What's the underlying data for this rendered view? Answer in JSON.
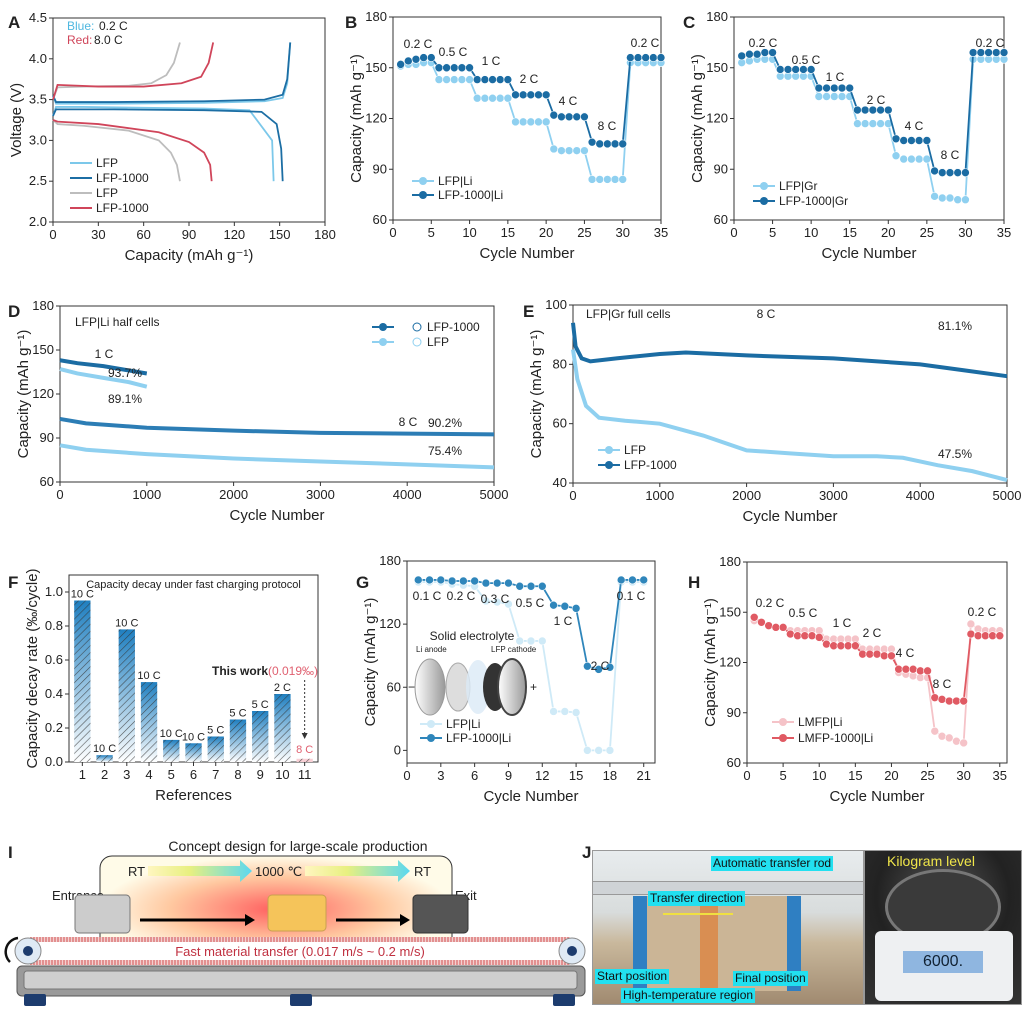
{
  "panels": {
    "A": "A",
    "B": "B",
    "C": "C",
    "D": "D",
    "E": "E",
    "F": "F",
    "G": "G",
    "H": "H",
    "I": "I",
    "J": "J"
  },
  "chart_data": [
    {
      "id": "A",
      "type": "line",
      "xlabel": "Capacity (mAh g⁻¹)",
      "ylabel": "Voltage (V)",
      "xlim": [
        0,
        180
      ],
      "ylim": [
        2.0,
        4.5
      ],
      "xticks": [
        0,
        30,
        60,
        90,
        120,
        150,
        180
      ],
      "yticks": [
        2.0,
        2.5,
        3.0,
        3.5,
        4.0,
        4.5
      ],
      "annotations": [
        {
          "text": "Blue:",
          "color": "#4fb8e0"
        },
        {
          "text": "0.2 C"
        },
        {
          "text": "Red:",
          "color": "#d0455a"
        },
        {
          "text": "8.0 C"
        }
      ],
      "series": [
        {
          "name": "LFP",
          "color": "#7cc8ea",
          "x": [
            0,
            2,
            20,
            60,
            100,
            130,
            145,
            146
          ],
          "y": [
            3.3,
            3.41,
            3.41,
            3.4,
            3.39,
            3.37,
            3.0,
            2.5
          ],
          "x2": [
            0,
            2,
            40,
            100,
            140,
            152,
            155,
            157
          ],
          "y2": [
            3.55,
            3.45,
            3.45,
            3.46,
            3.48,
            3.52,
            3.7,
            4.2
          ]
        },
        {
          "name": "LFP-1000",
          "color": "#1c6ea4",
          "x": [
            0,
            2,
            40,
            100,
            138,
            148,
            151,
            152
          ],
          "y": [
            3.3,
            3.38,
            3.38,
            3.37,
            3.35,
            3.2,
            2.9,
            2.5
          ],
          "x2": [
            0,
            2,
            40,
            100,
            140,
            152,
            155,
            157
          ],
          "y2": [
            3.55,
            3.47,
            3.47,
            3.48,
            3.5,
            3.56,
            3.75,
            4.2
          ]
        },
        {
          "name": "LFP",
          "color": "#bdbdbd",
          "x": [
            0,
            3,
            20,
            50,
            70,
            78,
            82,
            84
          ],
          "y": [
            3.25,
            3.2,
            3.18,
            3.12,
            3.0,
            2.85,
            2.7,
            2.5
          ],
          "x2": [
            0,
            3,
            20,
            50,
            65,
            75,
            80,
            84
          ],
          "y2": [
            3.5,
            3.65,
            3.66,
            3.67,
            3.7,
            3.8,
            3.95,
            4.2
          ]
        },
        {
          "name": "LFP-1000",
          "color": "#d0455a",
          "x": [
            0,
            3,
            30,
            70,
            90,
            100,
            104,
            105
          ],
          "y": [
            3.25,
            3.23,
            3.2,
            3.1,
            2.98,
            2.85,
            2.7,
            2.5
          ],
          "x2": [
            0,
            3,
            30,
            60,
            85,
            98,
            103,
            106
          ],
          "y2": [
            3.5,
            3.68,
            3.66,
            3.66,
            3.7,
            3.78,
            3.95,
            4.2
          ]
        }
      ]
    },
    {
      "id": "B",
      "type": "line",
      "xlabel": "Cycle Number",
      "ylabel": "Capacity (mAh g⁻¹)",
      "xlim": [
        0,
        35
      ],
      "ylim": [
        60,
        180
      ],
      "xticks": [
        0,
        5,
        10,
        15,
        20,
        25,
        30,
        35
      ],
      "yticks": [
        60,
        90,
        120,
        150,
        180
      ],
      "annotations": [
        {
          "text": "0.2 C"
        },
        {
          "text": "0.5 C"
        },
        {
          "text": "1 C"
        },
        {
          "text": "2 C"
        },
        {
          "text": "4 C"
        },
        {
          "text": "8 C"
        },
        {
          "text": "0.2 C"
        }
      ],
      "series": [
        {
          "name": "LFP|Li",
          "color": "#8fd0f0",
          "y": [
            151,
            152,
            152,
            153,
            153,
            143,
            143,
            143,
            143,
            143,
            132,
            132,
            132,
            132,
            132,
            118,
            118,
            118,
            118,
            118,
            102,
            101,
            101,
            101,
            101,
            84,
            84,
            84,
            84,
            84,
            153,
            153,
            153,
            153,
            153
          ]
        },
        {
          "name": "LFP-1000|Li",
          "color": "#1b6ca3",
          "y": [
            152,
            154,
            155,
            156,
            156,
            150,
            150,
            150,
            150,
            150,
            143,
            143,
            143,
            143,
            143,
            134,
            134,
            134,
            134,
            134,
            122,
            121,
            121,
            121,
            121,
            106,
            105,
            105,
            105,
            105,
            156,
            156,
            156,
            156,
            156
          ]
        }
      ]
    },
    {
      "id": "C",
      "type": "line",
      "xlabel": "Cycle Number",
      "ylabel": "Capacity (mAh g⁻¹)",
      "xlim": [
        0,
        35
      ],
      "ylim": [
        60,
        180
      ],
      "xticks": [
        0,
        5,
        10,
        15,
        20,
        25,
        30,
        35
      ],
      "yticks": [
        60,
        90,
        120,
        150,
        180
      ],
      "annotations": [
        {
          "text": "0.2 C"
        },
        {
          "text": "0.5 C"
        },
        {
          "text": "1 C"
        },
        {
          "text": "2 C"
        },
        {
          "text": "4 C"
        },
        {
          "text": "8 C"
        },
        {
          "text": "0.2 C"
        }
      ],
      "series": [
        {
          "name": "LFP|Gr",
          "color": "#8fd0f0",
          "y": [
            153,
            154,
            155,
            155,
            155,
            145,
            145,
            145,
            145,
            145,
            133,
            133,
            133,
            133,
            133,
            117,
            117,
            117,
            117,
            117,
            98,
            96,
            96,
            96,
            96,
            74,
            73,
            73,
            72,
            72,
            155,
            155,
            155,
            155,
            155
          ]
        },
        {
          "name": "LFP-1000|Gr",
          "color": "#1b6ca3",
          "y": [
            157,
            158,
            158,
            159,
            159,
            149,
            149,
            149,
            149,
            149,
            138,
            138,
            138,
            138,
            138,
            125,
            125,
            125,
            125,
            125,
            108,
            107,
            107,
            107,
            107,
            89,
            88,
            88,
            88,
            88,
            159,
            159,
            159,
            159,
            159
          ]
        }
      ]
    },
    {
      "id": "D",
      "type": "line",
      "xlabel": "Cycle Number",
      "ylabel": "Capacity (mAh g⁻¹)",
      "xlim": [
        0,
        5000
      ],
      "ylim": [
        60,
        180
      ],
      "xticks": [
        0,
        1000,
        2000,
        3000,
        4000,
        5000
      ],
      "yticks": [
        60,
        90,
        120,
        150,
        180
      ],
      "annotations": [
        {
          "text": "LFP|Li half cells"
        },
        {
          "text": "1 C"
        },
        {
          "text": "93.7%"
        },
        {
          "text": "89.1%"
        },
        {
          "text": "8 C"
        },
        {
          "text": "90.2%"
        },
        {
          "text": "75.4%"
        }
      ],
      "series": [
        {
          "name": "LFP-1000",
          "color": "#1b6ca3",
          "x": [
            0,
            200,
            500,
            800,
            1000
          ],
          "y": [
            143,
            141,
            139,
            136,
            134
          ]
        },
        {
          "name": "LFP",
          "color": "#8fd0f0",
          "x": [
            0,
            200,
            500,
            800,
            1000
          ],
          "y": [
            137,
            134,
            131,
            128,
            125
          ]
        },
        {
          "name": "LFP-1000",
          "color": "#2c7db5",
          "x": [
            0,
            300,
            1000,
            2000,
            3000,
            4000,
            5000
          ],
          "y": [
            103,
            100,
            97,
            95,
            93.5,
            93,
            92.5
          ]
        },
        {
          "name": "LFP",
          "color": "#8fd0f0",
          "x": [
            0,
            300,
            1000,
            2000,
            3000,
            4000,
            5000
          ],
          "y": [
            85,
            82,
            79,
            76,
            74,
            72,
            70
          ]
        }
      ]
    },
    {
      "id": "E",
      "type": "line",
      "xlabel": "Cycle Number",
      "ylabel": "Capacity (mAh g⁻¹)",
      "xlim": [
        0,
        5000
      ],
      "ylim": [
        40,
        100
      ],
      "xticks": [
        0,
        1000,
        2000,
        3000,
        4000,
        5000
      ],
      "yticks": [
        40,
        60,
        80,
        100
      ],
      "annotations": [
        {
          "text": "LFP|Gr full cells"
        },
        {
          "text": "8 C"
        },
        {
          "text": "81.1%"
        },
        {
          "text": "47.5%"
        }
      ],
      "series": [
        {
          "name": "LFP",
          "color": "#8fd0f0",
          "x": [
            0,
            50,
            150,
            300,
            600,
            1000,
            1500,
            2000,
            2500,
            3000,
            3500,
            3800,
            4200,
            4600,
            5000
          ],
          "y": [
            85,
            75,
            66,
            62,
            61,
            60,
            56,
            51,
            50,
            49,
            49,
            48.5,
            46,
            44,
            41
          ]
        },
        {
          "name": "LFP-1000",
          "color": "#1b6ca3",
          "x": [
            0,
            30,
            100,
            200,
            500,
            1000,
            1300,
            2000,
            3000,
            4000,
            4500,
            5000
          ],
          "y": [
            94,
            86,
            82,
            81,
            82,
            83.5,
            84,
            83,
            82,
            80,
            78,
            76
          ]
        }
      ]
    },
    {
      "id": "F",
      "type": "bar",
      "title": "Capacity decay under fast charging protocol",
      "xlabel": "References",
      "ylabel": "Capacity decay rate (‰/cycle)",
      "ylim": [
        0,
        1.1
      ],
      "categories": [
        "1",
        "2",
        "3",
        "4",
        "5",
        "6",
        "7",
        "8",
        "9",
        "10",
        "11"
      ],
      "yticks": [
        0.0,
        0.2,
        0.4,
        0.6,
        0.8,
        1.0
      ],
      "values": [
        0.95,
        0.04,
        0.78,
        0.47,
        0.13,
        0.11,
        0.15,
        0.25,
        0.3,
        0.4,
        0.019
      ],
      "bar_labels": [
        "10 C",
        "10 C",
        "10 C",
        "10 C",
        "10 C",
        "10 C",
        "5 C",
        "5 C",
        "5 C",
        "2 C",
        "8 C"
      ],
      "annotations": [
        {
          "text": "This work"
        },
        {
          "text": "(0.019‰)",
          "color": "#e06070"
        }
      ]
    },
    {
      "id": "G",
      "type": "line",
      "xlabel": "Cycle Number",
      "ylabel": "Capacity (mAh g⁻¹)",
      "xlim": [
        0,
        22
      ],
      "ylim": [
        -12,
        180
      ],
      "xticks": [
        0,
        3,
        6,
        9,
        12,
        15,
        18,
        21
      ],
      "yticks": [
        0,
        60,
        120,
        180
      ],
      "annotations": [
        {
          "text": "0.1 C"
        },
        {
          "text": "0.2 C"
        },
        {
          "text": "0.3 C"
        },
        {
          "text": "0.5 C"
        },
        {
          "text": "1 C"
        },
        {
          "text": "2 C"
        },
        {
          "text": "0.1 C"
        }
      ],
      "inset": {
        "title": "Solid electrolyte",
        "anode": "Li anode",
        "cathode": "LFP cathode",
        "minus": "−",
        "plus": "+"
      },
      "series": [
        {
          "name": "LFP|Li",
          "color": "#cfeaf7",
          "y": [
            160,
            160,
            160,
            158,
            157,
            156,
            142,
            141,
            139,
            104,
            104,
            104,
            37,
            37,
            36,
            0,
            0,
            0,
            160,
            160,
            160
          ]
        },
        {
          "name": "LFP-1000|Li",
          "color": "#2f86bb",
          "y": [
            162,
            162,
            162,
            161,
            161,
            161,
            159,
            159,
            159,
            156,
            156,
            156,
            138,
            137,
            135,
            80,
            77,
            79,
            162,
            162,
            162
          ]
        }
      ]
    },
    {
      "id": "H",
      "type": "line",
      "xlabel": "Cycle Number",
      "ylabel": "Capacity (mAh g⁻¹)",
      "xlim": [
        0,
        36
      ],
      "ylim": [
        60,
        180
      ],
      "xticks": [
        0,
        5,
        10,
        15,
        20,
        25,
        30,
        35
      ],
      "yticks": [
        60,
        90,
        120,
        150,
        180
      ],
      "annotations": [
        {
          "text": "0.2 C"
        },
        {
          "text": "0.5 C"
        },
        {
          "text": "1 C"
        },
        {
          "text": "2 C"
        },
        {
          "text": "4 C"
        },
        {
          "text": "8 C"
        },
        {
          "text": "0.2 C"
        }
      ],
      "series": [
        {
          "name": "LMFP|Li",
          "color": "#f5c3c8",
          "y": [
            145,
            144,
            142,
            141,
            141,
            139,
            139,
            139,
            139,
            139,
            134,
            134,
            134,
            134,
            134,
            128,
            128,
            128,
            128,
            128,
            114,
            113,
            112,
            111,
            111,
            79,
            76,
            75,
            73,
            72,
            143,
            140,
            139,
            139,
            139
          ]
        },
        {
          "name": "LMFP-1000|Li",
          "color": "#e05a63",
          "y": [
            147,
            144,
            142,
            141,
            141,
            137,
            136,
            136,
            136,
            135,
            131,
            130,
            130,
            130,
            130,
            125,
            125,
            125,
            124,
            124,
            116,
            116,
            116,
            115,
            115,
            99,
            98,
            97,
            97,
            97,
            137,
            136,
            136,
            136,
            136
          ]
        }
      ]
    }
  ],
  "concept": {
    "title": "Concept design for large-scale production",
    "rt_left": "RT",
    "hot": "1000 ℃",
    "rt_right": "RT",
    "entrance": "Entrance",
    "exit": "Exit",
    "transfer": "Fast material transfer (0.017 m/s ~ 0.2 m/s)"
  },
  "photo": {
    "rod": "Automatic transfer rod",
    "direction": "Transfer direction",
    "start": "Start position",
    "final": "Final position",
    "hot_region": "High-temperature region",
    "kilogram": "Kilogram level",
    "scale_reading": "6000."
  }
}
